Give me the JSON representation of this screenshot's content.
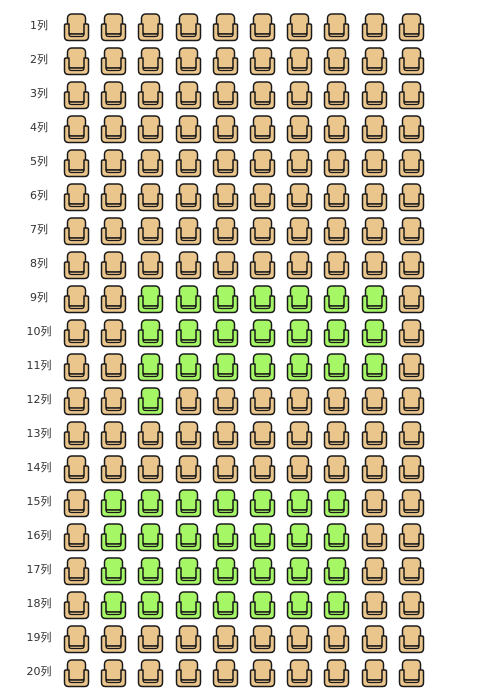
{
  "seat_map": {
    "row_suffix": "列",
    "seats_per_row": 10,
    "colors": {
      "available": "#EBC68C",
      "selected": "#A6F766",
      "outline": "#1a1a1a"
    },
    "rows": [
      {
        "label": "1列",
        "selected_seats": []
      },
      {
        "label": "2列",
        "selected_seats": []
      },
      {
        "label": "3列",
        "selected_seats": []
      },
      {
        "label": "4列",
        "selected_seats": []
      },
      {
        "label": "5列",
        "selected_seats": []
      },
      {
        "label": "6列",
        "selected_seats": []
      },
      {
        "label": "7列",
        "selected_seats": []
      },
      {
        "label": "8列",
        "selected_seats": []
      },
      {
        "label": "9列",
        "selected_seats": [
          3,
          4,
          5,
          6,
          7,
          8,
          9
        ]
      },
      {
        "label": "10列",
        "selected_seats": [
          3,
          4,
          5,
          6,
          7,
          8,
          9
        ]
      },
      {
        "label": "11列",
        "selected_seats": [
          3,
          4,
          5,
          6,
          7,
          8,
          9
        ]
      },
      {
        "label": "12列",
        "selected_seats": [
          3
        ]
      },
      {
        "label": "13列",
        "selected_seats": []
      },
      {
        "label": "14列",
        "selected_seats": []
      },
      {
        "label": "15列",
        "selected_seats": [
          2,
          3,
          4,
          5,
          6,
          7,
          8
        ]
      },
      {
        "label": "16列",
        "selected_seats": [
          2,
          3,
          4,
          5,
          6,
          7,
          8
        ]
      },
      {
        "label": "17列",
        "selected_seats": [
          2,
          3,
          4,
          5,
          6,
          7,
          8
        ]
      },
      {
        "label": "18列",
        "selected_seats": [
          2,
          3,
          4,
          5,
          6,
          7,
          8
        ]
      },
      {
        "label": "19列",
        "selected_seats": []
      },
      {
        "label": "20列",
        "selected_seats": []
      }
    ]
  }
}
